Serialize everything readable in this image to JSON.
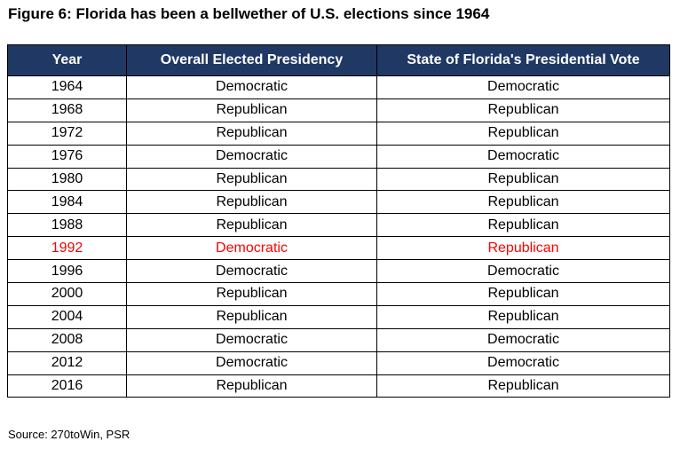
{
  "title": "Figure 6: Florida has been a bellwether of U.S. elections since 1964",
  "headers": [
    "Year",
    "Overall Elected Presidency",
    "State of Florida's Presidential Vote"
  ],
  "rows": [
    {
      "year": "1964",
      "overall": "Democratic",
      "florida": "Democratic"
    },
    {
      "year": "1968",
      "overall": "Republican",
      "florida": "Republican"
    },
    {
      "year": "1972",
      "overall": "Republican",
      "florida": "Republican"
    },
    {
      "year": "1976",
      "overall": "Democratic",
      "florida": "Democratic"
    },
    {
      "year": "1980",
      "overall": "Republican",
      "florida": "Republican"
    },
    {
      "year": "1984",
      "overall": "Republican",
      "florida": "Republican"
    },
    {
      "year": "1988",
      "overall": "Republican",
      "florida": "Republican"
    },
    {
      "year": "1992",
      "overall": "Democratic",
      "florida": "Republican",
      "highlight": true
    },
    {
      "year": "1996",
      "overall": "Democratic",
      "florida": "Democratic"
    },
    {
      "year": "2000",
      "overall": "Republican",
      "florida": "Republican"
    },
    {
      "year": "2004",
      "overall": "Republican",
      "florida": "Republican"
    },
    {
      "year": "2008",
      "overall": "Democratic",
      "florida": "Democratic"
    },
    {
      "year": "2012",
      "overall": "Democratic",
      "florida": "Democratic"
    },
    {
      "year": "2016",
      "overall": "Republican",
      "florida": "Republican"
    }
  ],
  "source": "Source: 270toWin, PSR",
  "colors": {
    "header_bg": "#1f3864",
    "header_text": "#ffffff",
    "highlight": "#ff0000"
  }
}
